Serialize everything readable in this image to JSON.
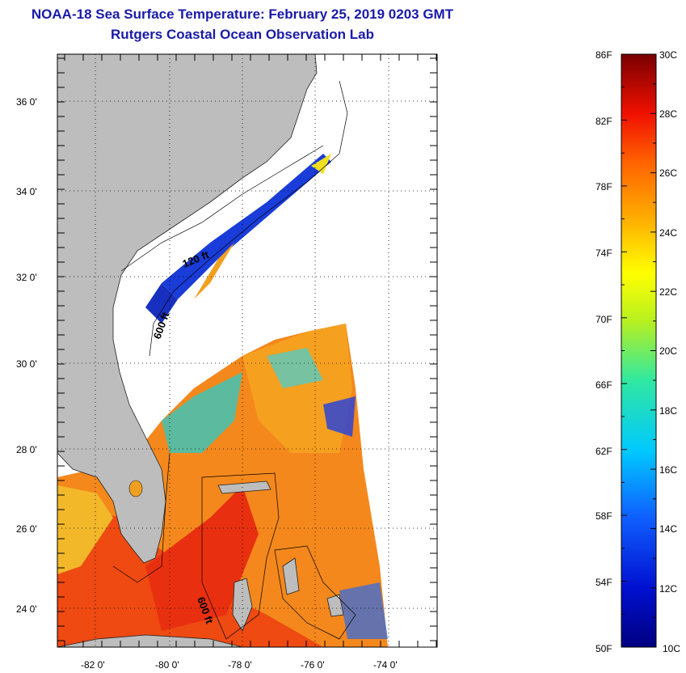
{
  "header": {
    "title": "NOAA-18 Sea Surface Temperature:  February 25, 2019 0203 GMT",
    "subtitle": "Rutgers Coastal Ocean Observation Lab"
  },
  "map": {
    "lat_labels": [
      "36 0'",
      "34 0'",
      "32 0'",
      "30 0'",
      "28 0'",
      "26 0'",
      "24 0'"
    ],
    "lon_labels": [
      "-82 0'",
      "-80 0'",
      "-78 0'",
      "-76 0'",
      "-74 0'"
    ],
    "contour_labels": [
      "120 ft",
      "600 ft",
      "600 ft"
    ],
    "land_color": "#bdbdbd"
  },
  "colorbar": {
    "f_labels": [
      "86F",
      "82F",
      "78F",
      "74F",
      "70F",
      "66F",
      "62F",
      "58F",
      "54F",
      "50F"
    ],
    "c_labels": [
      "30C",
      "28C",
      "26C",
      "24C",
      "22C",
      "20C",
      "18C",
      "16C",
      "14C",
      "12C",
      "10C"
    ],
    "min_c": 10,
    "max_c": 30,
    "min_f": 50,
    "max_f": 86
  }
}
